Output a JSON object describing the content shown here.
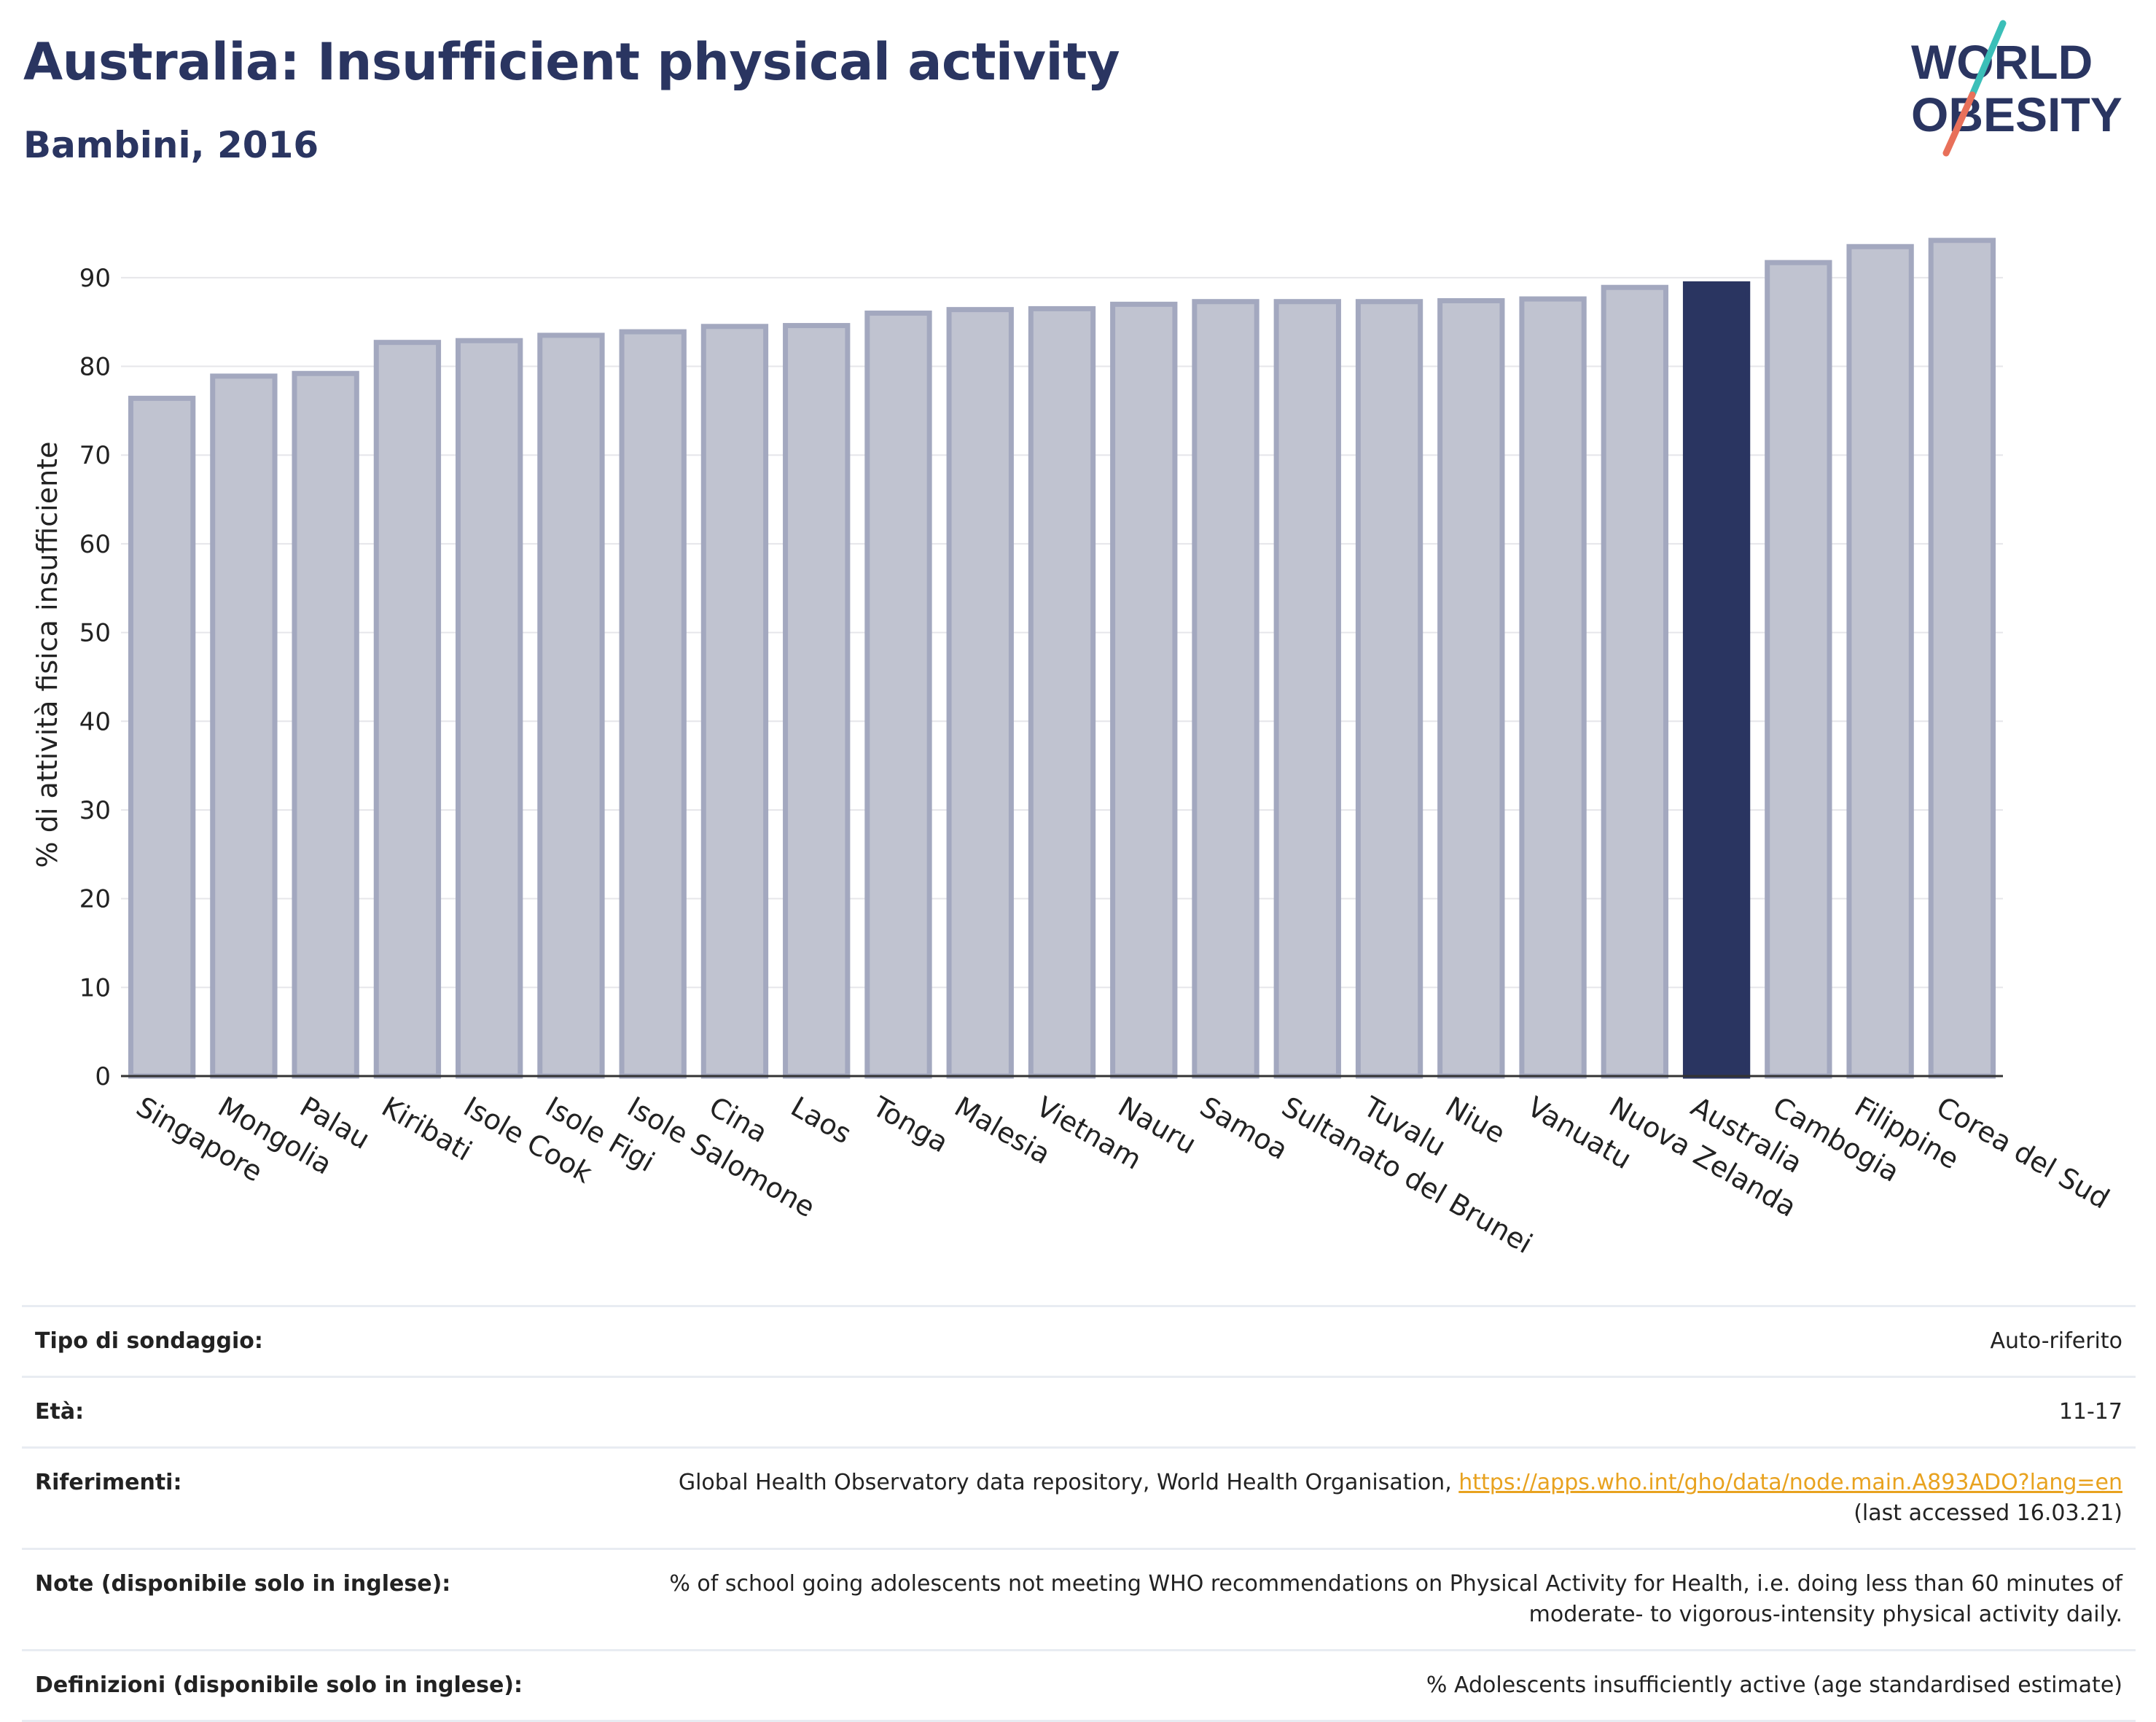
{
  "header": {
    "title": "Australia: Insufficient physical activity",
    "subtitle": "Bambini, 2016"
  },
  "logo": {
    "line1": "WORLD",
    "line2": "OBESITY",
    "colors": {
      "text": "#2a3561",
      "slash_teal": "#3bbfb8",
      "slash_coral": "#e8705a"
    }
  },
  "chart_data": {
    "type": "bar",
    "ylabel": "% di attività fisica insufficiente",
    "xlabel": "",
    "ylim": [
      0,
      95
    ],
    "yticks": [
      0,
      10,
      20,
      30,
      40,
      50,
      60,
      70,
      80,
      90
    ],
    "grid": true,
    "highlight": "Australia",
    "colors": {
      "bar": "#c0c3d0",
      "bar_edge": "#a3a8bf",
      "highlight": "#2a3561",
      "grid": "#e6e6ea",
      "axis": "#333333"
    },
    "categories": [
      "Singapore",
      "Mongolia",
      "Palau",
      "Kiribati",
      "Isole Cook",
      "Isole Figi",
      "Isole Salomone",
      "Cina",
      "Laos",
      "Tonga",
      "Malesia",
      "Vietnam",
      "Nauru",
      "Samoa",
      "Sultanato del Brunei",
      "Tuvalu",
      "Niue",
      "Vanuatu",
      "Nuova Zelanda",
      "Australia",
      "Cambogia",
      "Filippine",
      "Corea del Sud"
    ],
    "values": [
      76.4,
      78.9,
      79.2,
      82.7,
      82.9,
      83.5,
      83.9,
      84.5,
      84.6,
      86.0,
      86.4,
      86.5,
      87.0,
      87.3,
      87.3,
      87.3,
      87.4,
      87.6,
      88.9,
      89.3,
      91.7,
      93.5,
      94.2
    ]
  },
  "info": [
    {
      "key": "Tipo di sondaggio:",
      "value": "Auto-riferito"
    },
    {
      "key": "Età:",
      "value": "11-17"
    },
    {
      "key": "Riferimenti:",
      "value": "Global Health Observatory data repository, World Health Organisation, ",
      "link": "https://apps.who.int/gho/data/node.main.A893ADO?lang=en",
      "value2": "(last accessed 16.03.21)"
    },
    {
      "key": "Note (disponibile solo in inglese):",
      "value": "% of school going adolescents not meeting WHO recommendations on Physical Activity for Health, i.e. doing less than 60 minutes of",
      "value2": "moderate- to vigorous-intensity physical activity daily."
    },
    {
      "key": "Definizioni (disponibile solo in inglese):",
      "value": "% Adolescents insufficiently active (age standardised estimate)"
    }
  ]
}
